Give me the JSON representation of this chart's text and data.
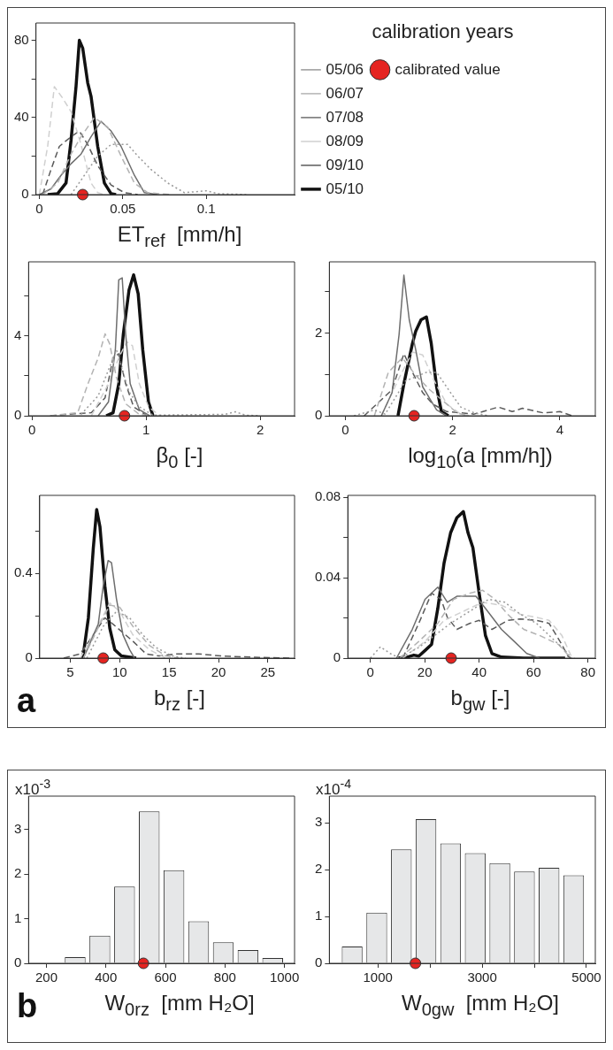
{
  "chart_data": [
    {
      "type": "line",
      "xlabel": "ET$_{ref}$  [mm/h]",
      "xlim": [
        -0.002,
        0.153
      ],
      "xticks": [
        0,
        0.05,
        0.1
      ],
      "ylim": [
        0,
        89
      ],
      "yticks": [
        0,
        {
          "value": 20,
          "label": null
        },
        40,
        {
          "value": 60,
          "label": null
        },
        80
      ],
      "legend": "right",
      "legend_title": "calibration years",
      "series": [
        {
          "name": "05/06",
          "color": "#9a9a9a",
          "line_style": "dotted",
          "x": [
            0.019,
            0.027,
            0.035,
            0.043,
            0.053,
            0.059,
            0.067,
            0.077,
            0.087,
            0.1,
            0.107,
            0.125
          ],
          "values": [
            0,
            10,
            20,
            26,
            26,
            20,
            13,
            6,
            1,
            2,
            0.5,
            0
          ]
        },
        {
          "name": "06/07",
          "color": "#b3b3b3",
          "line_style": "dashed",
          "x": [
            0.002,
            0.011,
            0.019,
            0.025,
            0.033,
            0.041,
            0.049,
            0.057,
            0.065,
            0.079
          ],
          "values": [
            0,
            6,
            21,
            30,
            40,
            35,
            20,
            6,
            1,
            0
          ]
        },
        {
          "name": "07/08",
          "color": "#6e6e6e",
          "line_style": "solid",
          "x": [
            0,
            0.007,
            0.013,
            0.019,
            0.025,
            0.031,
            0.037,
            0.043,
            0.049,
            0.057,
            0.063,
            0.071
          ],
          "values": [
            0,
            3,
            10,
            16,
            21,
            30,
            38,
            33,
            25,
            10,
            1,
            0
          ]
        },
        {
          "name": "08/09",
          "color": "#d0d0d0",
          "line_style": "dashed",
          "x": [
            0,
            0.005,
            0.009,
            0.014,
            0.019,
            0.025,
            0.031,
            0.035,
            0.039
          ],
          "values": [
            0,
            25,
            56,
            50,
            43,
            26,
            6,
            1,
            0
          ]
        },
        {
          "name": "09/10",
          "color": "#5a5a5a",
          "line_style": "dashed",
          "x": [
            0.002,
            0.007,
            0.012,
            0.019,
            0.024,
            0.029,
            0.035,
            0.043,
            0.051,
            0.059
          ],
          "values": [
            0,
            13,
            25,
            30,
            33,
            26,
            15,
            5,
            1,
            0
          ]
        },
        {
          "name": "05/10",
          "color": "#111111",
          "line_style": "solid",
          "x": [
            0.005,
            0.011,
            0.016,
            0.019,
            0.022,
            0.024,
            0.026,
            0.029,
            0.031,
            0.035,
            0.039,
            0.043,
            0.046
          ],
          "values": [
            0,
            0.5,
            6,
            28,
            56,
            80,
            76,
            58,
            51,
            25,
            6,
            0.5,
            0
          ]
        },
        {
          "name": "calibrated value",
          "type": "scatter",
          "marker": "circle",
          "color": "#e52421",
          "x": [
            0.026
          ],
          "values": [
            0
          ]
        }
      ]
    },
    {
      "type": "line",
      "xlabel": "β$_{0}$ [-]",
      "xlim": [
        -0.03,
        2.3
      ],
      "xticks": [
        0,
        1,
        2
      ],
      "ylim": [
        0,
        7.7
      ],
      "yticks": [
        0,
        {
          "value": 2,
          "label": null
        },
        4,
        {
          "value": 6,
          "label": null
        }
      ],
      "series": [
        {
          "color": "#9a9a9a",
          "line_style": "dotted",
          "x": [
            0.43,
            0.58,
            0.67,
            0.74,
            0.79,
            0.85,
            0.94,
            1.06,
            1.69,
            1.78,
            1.87,
            2
          ],
          "values": [
            0.07,
            1,
            2.3,
            3.3,
            2.3,
            1.2,
            0.45,
            0.03,
            0.07,
            0.2,
            0.03,
            0
          ]
        },
        {
          "color": "#b3b3b3",
          "line_style": "dashed",
          "x": [
            0.16,
            0.4,
            0.49,
            0.58,
            0.64,
            0.68,
            0.74,
            0.82,
            0.94,
            1.06
          ],
          "values": [
            0,
            0.15,
            1.6,
            2.9,
            4.1,
            3.6,
            1.9,
            0.6,
            0.07,
            0
          ]
        },
        {
          "color": "#6e6e6e",
          "line_style": "solid",
          "x": [
            0.58,
            0.67,
            0.73,
            0.76,
            0.79,
            0.82,
            0.86,
            0.94,
            1.03
          ],
          "values": [
            0,
            0.7,
            3.3,
            6.8,
            6.9,
            4.1,
            1.6,
            0.3,
            0
          ]
        },
        {
          "color": "#d0d0d0",
          "line_style": "dashed",
          "x": [
            0.52,
            0.67,
            0.76,
            0.83,
            0.88,
            0.94,
            1.02,
            1.12
          ],
          "values": [
            0,
            1.6,
            2.9,
            3.7,
            3.5,
            1.6,
            0.45,
            0
          ]
        },
        {
          "color": "#5a5a5a",
          "line_style": "dashed",
          "x": [
            0.16,
            0.37,
            0.52,
            0.64,
            0.71,
            0.76,
            0.82,
            0.89,
            1,
            1.06
          ],
          "values": [
            0,
            0.1,
            0.15,
            0.9,
            2.9,
            3.1,
            1.6,
            0.45,
            0.03,
            0
          ]
        },
        {
          "color": "#111111",
          "line_style": "solid",
          "x": [
            0.65,
            0.71,
            0.76,
            0.8,
            0.85,
            0.89,
            0.93,
            0.97,
            1.02,
            1.06
          ],
          "values": [
            0,
            0.15,
            1.6,
            4.1,
            6.3,
            7.05,
            6.1,
            3.3,
            0.7,
            0
          ]
        },
        {
          "type": "scatter",
          "marker": "circle",
          "color": "#e52421",
          "x": [
            0.81
          ],
          "values": [
            0
          ]
        }
      ]
    },
    {
      "type": "line",
      "xlabel": "log$_{10}$(a [mm/h])",
      "xlim": [
        -0.3,
        4.66
      ],
      "xticks": [
        0,
        2,
        4
      ],
      "ylim": [
        0,
        3.72
      ],
      "yticks": [
        0,
        {
          "value": 1,
          "label": null
        },
        2,
        {
          "value": 3,
          "label": null
        }
      ],
      "series": [
        {
          "color": "#9a9a9a",
          "line_style": "dotted",
          "x": [
            0.16,
            0.54,
            0.74,
            1.12,
            1.51,
            1.7,
            1.96,
            2.15,
            2.4,
            2.66
          ],
          "values": [
            0,
            0.14,
            0.04,
            0.84,
            1.05,
            1.05,
            0.56,
            0.21,
            0.07,
            0
          ]
        },
        {
          "color": "#b3b3b3",
          "line_style": "dashed",
          "x": [
            0.54,
            0.8,
            1.06,
            1.31,
            1.57,
            1.83,
            2.08,
            2.28
          ],
          "values": [
            0,
            1.05,
            1.4,
            0.98,
            0.63,
            0.35,
            0.07,
            0
          ]
        },
        {
          "color": "#6e6e6e",
          "line_style": "solid",
          "x": [
            0.67,
            0.87,
            1,
            1.09,
            1.19,
            1.31,
            1.44,
            1.57,
            1.7,
            1.89
          ],
          "values": [
            0,
            0.56,
            1.96,
            3.4,
            2.32,
            1.6,
            0.7,
            0.42,
            0.14,
            0
          ]
        },
        {
          "color": "#d0d0d0",
          "line_style": "dashed",
          "x": [
            0.67,
            1,
            1.25,
            1.44,
            1.63,
            1.89,
            2.15,
            2.34
          ],
          "values": [
            0,
            0.91,
            1.54,
            1.47,
            0.91,
            0.28,
            0.04,
            0
          ]
        },
        {
          "color": "#5a5a5a",
          "line_style": "dashed",
          "x": [
            0.35,
            0.87,
            1.09,
            1.25,
            1.44,
            1.63,
            1.89,
            2.4,
            2.85,
            3.11,
            3.3,
            3.69,
            4,
            4.23
          ],
          "values": [
            0,
            0.63,
            1.5,
            1.05,
            0.56,
            0.28,
            0.1,
            0.04,
            0.21,
            0.1,
            0.18,
            0.07,
            0.1,
            0
          ]
        },
        {
          "color": "#111111",
          "line_style": "solid",
          "x": [
            0.98,
            1.09,
            1.25,
            1.31,
            1.41,
            1.51,
            1.6,
            1.7,
            1.79,
            1.92
          ],
          "values": [
            0,
            0.77,
            1.75,
            2.04,
            2.32,
            2.39,
            1.75,
            0.7,
            0.1,
            0
          ]
        },
        {
          "type": "scatter",
          "marker": "circle",
          "color": "#e52421",
          "x": [
            1.28
          ],
          "values": [
            0
          ]
        }
      ]
    },
    {
      "type": "line",
      "xlabel": "b$_{rz}$ [-]",
      "xlim": [
        1.9,
        27.7
      ],
      "xticks": [
        5,
        10,
        15,
        20,
        25
      ],
      "ylim": [
        0,
        0.767
      ],
      "yticks": [
        0,
        {
          "value": 0.2,
          "label": null
        },
        0.4,
        {
          "value": 0.6,
          "label": null
        }
      ],
      "annotations": [
        "a"
      ],
      "series": [
        {
          "color": "#9a9a9a",
          "line_style": "dotted",
          "x": [
            6.67,
            8.33,
            9.67,
            11,
            12.33,
            13.67,
            15.33,
            16.67
          ],
          "values": [
            0,
            0.15,
            0.22,
            0.19,
            0.11,
            0.05,
            0.01,
            0
          ]
        },
        {
          "color": "#b3b3b3",
          "line_style": "dashed",
          "x": [
            6.33,
            8,
            9,
            10,
            11.33,
            13,
            14.67,
            16
          ],
          "values": [
            0,
            0.16,
            0.25,
            0.24,
            0.15,
            0.06,
            0.01,
            0
          ]
        },
        {
          "color": "#6e6e6e",
          "line_style": "solid",
          "x": [
            6.33,
            7.83,
            8.33,
            8.83,
            9.17,
            9.67,
            10.33,
            11,
            11.5
          ],
          "values": [
            0,
            0.16,
            0.34,
            0.46,
            0.45,
            0.28,
            0.11,
            0.04,
            0
          ]
        },
        {
          "color": "#d0d0d0",
          "line_style": "dashed",
          "x": [
            6,
            7.67,
            9,
            10,
            11.33,
            13,
            14.67
          ],
          "values": [
            0,
            0.14,
            0.26,
            0.22,
            0.11,
            0.04,
            0
          ]
        },
        {
          "color": "#5a5a5a",
          "line_style": "dashed",
          "x": [
            4.33,
            6,
            7.33,
            8.5,
            9.33,
            10.33,
            11.33,
            12.67,
            14,
            15.67,
            18,
            20.33,
            23.67,
            27.33
          ],
          "values": [
            0,
            0.02,
            0.11,
            0.19,
            0.16,
            0.12,
            0.08,
            0.02,
            0.01,
            0.02,
            0.02,
            0.01,
            0.004,
            0
          ]
        },
        {
          "color": "#111111",
          "line_style": "solid",
          "x": [
            6.27,
            6.83,
            7.33,
            7.67,
            8,
            8.5,
            9,
            9.5,
            10.17,
            11.67
          ],
          "values": [
            0,
            0.19,
            0.52,
            0.7,
            0.62,
            0.34,
            0.14,
            0.04,
            0.01,
            0
          ]
        },
        {
          "type": "scatter",
          "marker": "circle",
          "color": "#e52421",
          "x": [
            8.33
          ],
          "values": [
            0
          ]
        }
      ]
    },
    {
      "type": "line",
      "xlabel": "b$_{gw}$ [-]",
      "xlim": [
        -8.3,
        82.7
      ],
      "xticks": [
        0,
        20,
        40,
        60,
        80
      ],
      "ylim": [
        0,
        0.081
      ],
      "yticks": [
        0,
        {
          "value": 0.02,
          "label": null
        },
        0.04,
        {
          "value": 0.06,
          "label": null
        },
        0.08
      ],
      "series": [
        {
          "color": "#9a9a9a",
          "line_style": "dotted",
          "x": [
            0,
            3.7,
            7.3,
            10.8,
            17.8,
            23.6,
            29.5,
            36.5,
            43.5,
            49.4,
            55.2,
            61.1,
            66.9,
            71.6,
            73.9
          ],
          "values": [
            0,
            0.0056,
            0.0023,
            0,
            0.0053,
            0.0113,
            0.0173,
            0.0233,
            0.0293,
            0.0278,
            0.0218,
            0.0173,
            0.0098,
            0.0038,
            0
          ]
        },
        {
          "color": "#b3b3b3",
          "line_style": "dashed",
          "x": [
            10.8,
            17.8,
            24.8,
            30.6,
            36.5,
            41.2,
            45.8,
            50.5,
            56.4,
            62.2,
            69.2,
            72.7,
            73.9
          ],
          "values": [
            0,
            0.0083,
            0.0173,
            0.0293,
            0.0323,
            0.0338,
            0.0293,
            0.0218,
            0.0143,
            0.0113,
            0.0068,
            0.0015,
            0
          ]
        },
        {
          "color": "#6e6e6e",
          "line_style": "solid",
          "x": [
            9.6,
            15.4,
            20.1,
            24.8,
            28.3,
            31.8,
            35.3,
            38.8,
            42.3,
            48.2,
            52.9,
            57.5,
            62.2
          ],
          "values": [
            0,
            0.0143,
            0.0293,
            0.0353,
            0.0278,
            0.0308,
            0.0308,
            0.0308,
            0.0248,
            0.0143,
            0.0083,
            0.0023,
            0
          ]
        },
        {
          "color": "#d0d0d0",
          "line_style": "dashed",
          "x": [
            11.9,
            20.1,
            27.1,
            34.2,
            41.2,
            48.2,
            55.2,
            61.1,
            65.7,
            70.4,
            73.9,
            75.1
          ],
          "values": [
            0,
            0.0083,
            0.0188,
            0.0233,
            0.0278,
            0.0263,
            0.0218,
            0.0203,
            0.0188,
            0.0113,
            0.0008,
            0
          ]
        },
        {
          "color": "#5a5a5a",
          "line_style": "dashed",
          "x": [
            11.9,
            17.8,
            22.5,
            26,
            28.3,
            31.8,
            36.5,
            40,
            44.7,
            50.5,
            55.2,
            61.1,
            65.7,
            70.4,
            72.7,
            73.9
          ],
          "values": [
            0,
            0.0173,
            0.0323,
            0.0293,
            0.0203,
            0.0143,
            0.0173,
            0.0188,
            0.0143,
            0.0188,
            0.0195,
            0.0188,
            0.0173,
            0.0068,
            0.0008,
            0
          ]
        },
        {
          "color": "#111111",
          "line_style": "solid",
          "x": [
            10.2,
            14.3,
            16,
            17.8,
            20.1,
            22.5,
            24.8,
            27.1,
            29.5,
            31.8,
            34.2,
            35.9,
            37.7,
            40,
            42.3,
            44.7,
            48.2,
            56.4,
            71.6
          ],
          "values": [
            0,
            0.0008,
            0.0015,
            0.001,
            0.0038,
            0.0068,
            0.0248,
            0.0474,
            0.0624,
            0.0699,
            0.0729,
            0.0624,
            0.0549,
            0.0323,
            0.0113,
            0.0023,
            0.0005,
            0,
            0
          ]
        },
        {
          "type": "scatter",
          "marker": "circle",
          "color": "#e52421",
          "x": [
            29.7
          ],
          "values": [
            0
          ]
        }
      ]
    },
    {
      "type": "histogram",
      "xlabel": "W$_{0rz}$  [mm H₂O]",
      "ylabel": "x10$^{-3}$",
      "xlim": [
        140,
        1034
      ],
      "xticks": [
        200,
        400,
        600,
        800,
        1000
      ],
      "ylim": [
        0,
        3.75
      ],
      "yticks": [
        0,
        1,
        2,
        3
      ],
      "annotations": [
        "b"
      ],
      "bins": [
        255,
        338,
        421,
        504,
        587,
        670,
        753,
        836,
        919,
        1002
      ],
      "series": [
        {
          "type": "histogram",
          "color": "#e6e7e8",
          "values": [
            0.14,
            0.62,
            1.72,
            3.41,
            2.09,
            0.94,
            0.47,
            0.3,
            0.12
          ]
        },
        {
          "type": "scatter",
          "marker": "circle",
          "color": "#e52421",
          "x": [
            526
          ],
          "values": [
            0
          ]
        }
      ]
    },
    {
      "type": "histogram",
      "xlabel": "W$_{0gw}$  [mm H₂O]",
      "ylabel": "x10$^{-4}$",
      "xlim": [
        70,
        5170
      ],
      "xticks": [
        1000,
        {
          "value": 2000,
          "label": null
        },
        3000,
        {
          "value": 4000,
          "label": null
        },
        5000
      ],
      "ylim": [
        0,
        3.57
      ],
      "yticks": [
        0,
        1,
        2,
        3
      ],
      "bins": [
        271,
        743,
        1215,
        1687,
        2159,
        2631,
        3103,
        3575,
        4047,
        4519,
        4991
      ],
      "series": [
        {
          "type": "histogram",
          "color": "#e6e7e8",
          "values": [
            0.36,
            1.08,
            2.43,
            3.08,
            2.56,
            2.35,
            2.14,
            1.96,
            2.04,
            1.88
          ]
        },
        {
          "type": "scatter",
          "marker": "circle",
          "color": "#e52421",
          "x": [
            1720
          ],
          "values": [
            0
          ]
        }
      ]
    }
  ]
}
